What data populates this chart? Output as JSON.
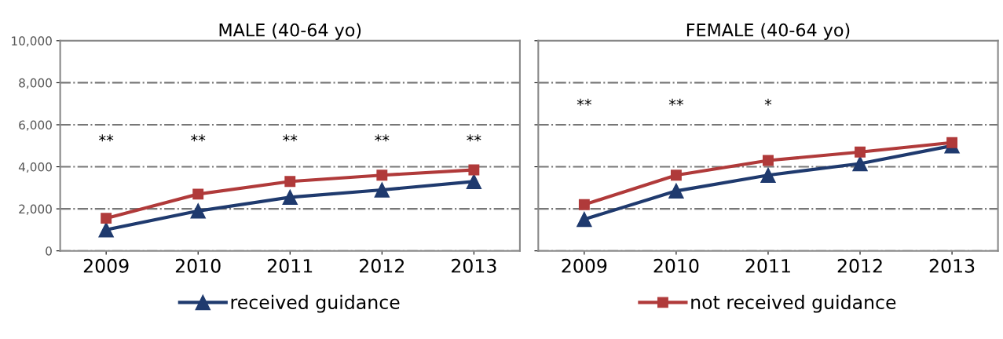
{
  "chart_data": [
    {
      "type": "line",
      "title": "MALE (40-64 yo)",
      "categories": [
        "2009",
        "2010",
        "2011",
        "2012",
        "2013"
      ],
      "ylim": [
        0,
        10000
      ],
      "yticks": [
        {
          "value": 0,
          "label": "0"
        },
        {
          "value": 2000,
          "label": "2,000"
        },
        {
          "value": 4000,
          "label": "4,000"
        },
        {
          "value": 6000,
          "label": "6,000"
        },
        {
          "value": 8000,
          "label": "8,000"
        },
        {
          "value": 10000,
          "label": "10,000"
        }
      ],
      "grid": "y",
      "legend": "bottom",
      "series": [
        {
          "name": "received guidance",
          "color": "#1f3a6e",
          "marker": "triangle",
          "values": [
            1000,
            1900,
            2550,
            2900,
            3300
          ]
        },
        {
          "color": "#b03a3a",
          "marker": "square",
          "values": [
            1550,
            2700,
            3300,
            3600,
            3850
          ]
        }
      ],
      "annotations": [
        "**",
        "**",
        "**",
        "**",
        "**"
      ]
    },
    {
      "type": "line",
      "title": "FEMALE (40-64 yo)",
      "categories": [
        "2009",
        "2010",
        "2011",
        "2012",
        "2013"
      ],
      "ylim": [
        0,
        10000
      ],
      "tick_labels": "x",
      "grid": "y",
      "legend": "bottom",
      "series": [
        {
          "color": "#1f3a6e",
          "marker": "triangle",
          "values": [
            1500,
            2850,
            3600,
            4150,
            5000
          ]
        },
        {
          "name": "not received guidance",
          "color": "#b03a3a",
          "marker": "square",
          "values": [
            2200,
            3600,
            4300,
            4700,
            5150
          ]
        }
      ],
      "annotations": [
        "**",
        "**",
        "*"
      ]
    }
  ]
}
